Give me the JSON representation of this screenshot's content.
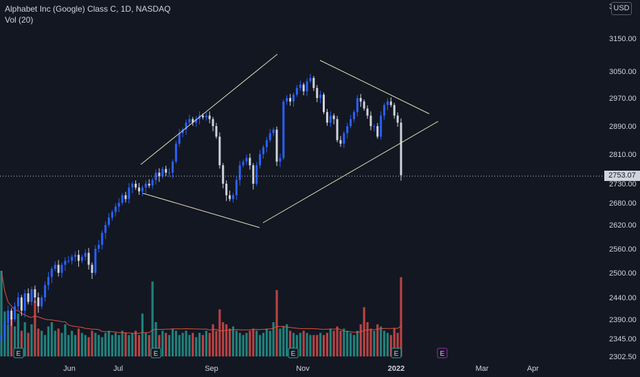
{
  "legend": {
    "symbol": "Alphabet Inc (Google) Class C, 1D, NASDAQ",
    "volume": "Vol (20)"
  },
  "axis": {
    "currency": "USD",
    "last_price": "2753.07",
    "top_label": "3"
  },
  "colors": {
    "background": "#131722",
    "up": "#2962ff",
    "down": "#d1d4dc",
    "vol_up": "#26a69a",
    "vol_down": "#ef5350",
    "vol_ma": "#e0533b",
    "trendline": "#e9dfbd",
    "axis_text": "#d1d4dc"
  },
  "chart_data": {
    "type": "candlestick",
    "y_ticks": [
      3150,
      3050,
      2970,
      2890,
      2810,
      2730,
      2680,
      2620,
      2560,
      2500,
      2440,
      2390,
      2345,
      2302.5
    ],
    "y_tick_labels": [
      "3150.00",
      "3050.00",
      "2970.00",
      "2890.00",
      "2810.00",
      "2730.00",
      "2680.00",
      "2620.00",
      "2560.00",
      "2500.00",
      "2440.00",
      "2390.00",
      "2345.00",
      "2302.50"
    ],
    "x_labels": [
      "Jun",
      "Jul",
      "Sep",
      "Nov",
      "2022",
      "Mar",
      "Apr"
    ],
    "last_price": 2753.07,
    "earnings_markers": [
      "E",
      "E",
      "E",
      "E",
      "E"
    ],
    "closes": [
      2350,
      2380,
      2410,
      2390,
      2420,
      2440,
      2410,
      2450,
      2430,
      2460,
      2440,
      2420,
      2440,
      2470,
      2490,
      2510,
      2520,
      2500,
      2520,
      2530,
      2530,
      2540,
      2545,
      2530,
      2540,
      2550,
      2520,
      2500,
      2560,
      2570,
      2600,
      2620,
      2640,
      2655,
      2670,
      2680,
      2700,
      2690,
      2720,
      2730,
      2720,
      2710,
      2720,
      2730,
      2725,
      2740,
      2760,
      2750,
      2770,
      2760,
      2760,
      2790,
      2840,
      2870,
      2880,
      2900,
      2910,
      2900,
      2910,
      2920,
      2915,
      2920,
      2910,
      2890,
      2860,
      2780,
      2730,
      2700,
      2690,
      2700,
      2740,
      2780,
      2790,
      2800,
      2780,
      2730,
      2780,
      2810,
      2830,
      2850,
      2870,
      2880,
      2790,
      2800,
      2960,
      2970,
      2960,
      2980,
      3000,
      3010,
      2990,
      3020,
      3030,
      3000,
      2970,
      2980,
      2930,
      2900,
      2920,
      2910,
      2850,
      2840,
      2870,
      2890,
      2910,
      2930,
      2970,
      2960,
      2940,
      2920,
      2890,
      2890,
      2860,
      2920,
      2950,
      2960,
      2950,
      2920,
      2900,
      2753.07
    ],
    "volumes": [
      4.0,
      2.1,
      1.5,
      1.8,
      1.4,
      2.0,
      1.2,
      1.6,
      1.1,
      1.5,
      2.6,
      1.3,
      1.2,
      1.0,
      1.4,
      1.6,
      1.2,
      1.3,
      1.1,
      1.5,
      1.0,
      1.2,
      1.0,
      1.3,
      1.1,
      1.0,
      0.9,
      1.2,
      1.1,
      1.0,
      0.9,
      1.1,
      1.2,
      1.0,
      1.1,
      1.0,
      1.2,
      1.1,
      1.0,
      1.1,
      1.2,
      1.0,
      2.0,
      1.1,
      1.0,
      3.5,
      1.6,
      1.0,
      1.2,
      1.1,
      1.0,
      1.3,
      1.2,
      1.0,
      1.1,
      1.2,
      1.0,
      1.1,
      0.9,
      1.1,
      1.0,
      1.2,
      1.1,
      1.5,
      1.2,
      2.2,
      1.6,
      1.5,
      1.3,
      1.4,
      1.2,
      1.1,
      1.0,
      1.1,
      1.2,
      1.3,
      1.2,
      1.0,
      1.1,
      1.3,
      1.2,
      1.6,
      3.1,
      1.3,
      1.4,
      1.5,
      1.2,
      1.1,
      1.0,
      1.1,
      1.2,
      1.1,
      1.0,
      1.0,
      1.0,
      1.1,
      1.0,
      1.1,
      1.3,
      1.2,
      1.4,
      1.2,
      1.3,
      1.2,
      1.1,
      1.0,
      1.2,
      1.5,
      2.3,
      1.6,
      1.3,
      1.2,
      1.5,
      1.4,
      1.2,
      1.1,
      1.0,
      1.3,
      1.1,
      3.7
    ]
  }
}
